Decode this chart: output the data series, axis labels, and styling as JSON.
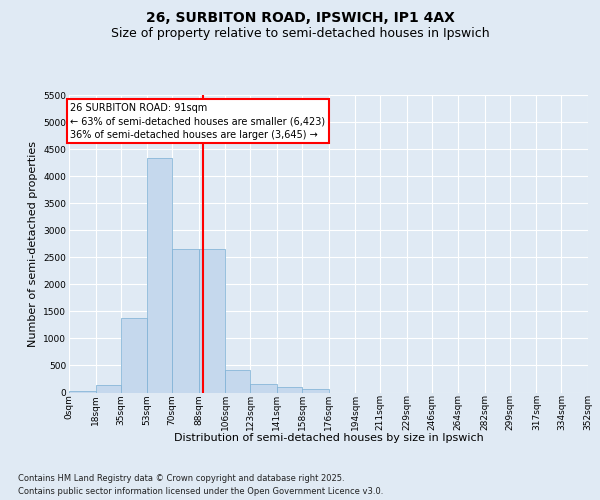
{
  "title": "26, SURBITON ROAD, IPSWICH, IP1 4AX",
  "subtitle": "Size of property relative to semi-detached houses in Ipswich",
  "xlabel": "Distribution of semi-detached houses by size in Ipswich",
  "ylabel": "Number of semi-detached properties",
  "footnote1": "Contains HM Land Registry data © Crown copyright and database right 2025.",
  "footnote2": "Contains public sector information licensed under the Open Government Licence v3.0.",
  "annotation_line1": "26 SURBITON ROAD: 91sqm",
  "annotation_line2": "← 63% of semi-detached houses are smaller (6,423)",
  "annotation_line3": "36% of semi-detached houses are larger (3,645) →",
  "bar_color": "#c5d8ed",
  "bar_edge_color": "#7aafd4",
  "vline_color": "red",
  "vline_x": 91,
  "bin_edges": [
    0,
    18,
    35,
    53,
    70,
    88,
    106,
    123,
    141,
    158,
    176,
    194,
    211,
    229,
    246,
    264,
    282,
    299,
    317,
    334,
    352
  ],
  "bin_labels": [
    "0sqm",
    "18sqm",
    "35sqm",
    "53sqm",
    "70sqm",
    "88sqm",
    "106sqm",
    "123sqm",
    "141sqm",
    "158sqm",
    "176sqm",
    "194sqm",
    "211sqm",
    "229sqm",
    "246sqm",
    "264sqm",
    "282sqm",
    "299sqm",
    "317sqm",
    "334sqm",
    "352sqm"
  ],
  "bar_heights": [
    25,
    145,
    1380,
    4330,
    2660,
    2660,
    420,
    160,
    100,
    65,
    0,
    0,
    0,
    0,
    0,
    0,
    0,
    0,
    0,
    0
  ],
  "ylim": [
    0,
    5500
  ],
  "yticks": [
    0,
    500,
    1000,
    1500,
    2000,
    2500,
    3000,
    3500,
    4000,
    4500,
    5000,
    5500
  ],
  "bg_color": "#e0eaf4",
  "plot_bg_color": "#e0eaf4",
  "annotation_box_facecolor": "white",
  "annotation_box_edgecolor": "red",
  "title_fontsize": 10,
  "subtitle_fontsize": 9,
  "ylabel_fontsize": 8,
  "xlabel_fontsize": 8,
  "tick_fontsize": 6.5,
  "annotation_fontsize": 7,
  "footnote_fontsize": 6
}
